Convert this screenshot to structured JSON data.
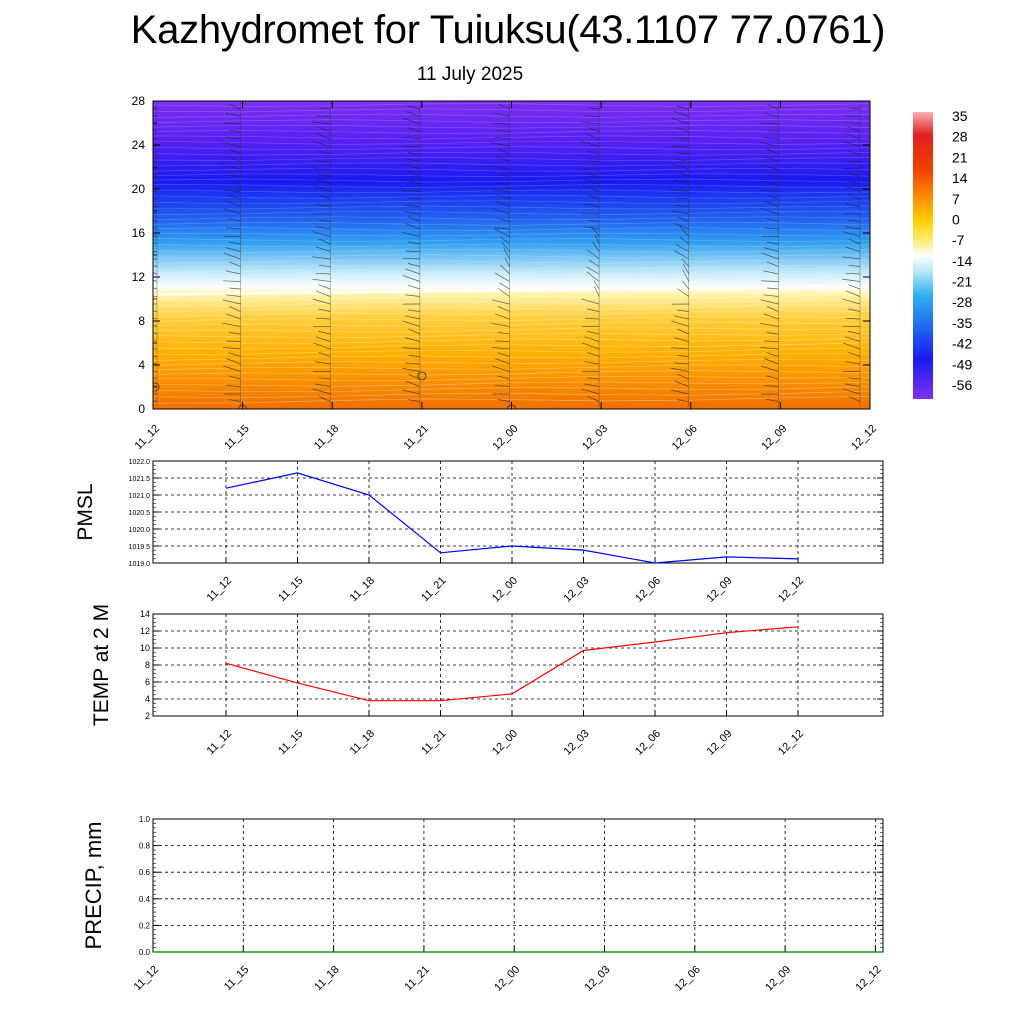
{
  "title": "Kazhydromet for Tuiuksu(43.1107 77.0761)",
  "subtitle": "11 July 2025",
  "time_labels": [
    "11_12",
    "11_15",
    "11_18",
    "11_21",
    "12_00",
    "12_03",
    "12_06",
    "12_09",
    "12_12"
  ],
  "precip_time_labels": [
    "11_12",
    "11_15",
    "11_18",
    "11_21",
    "12_00",
    "12_03",
    "12_06",
    "12_09",
    "12_12"
  ],
  "chart_data": [
    {
      "type": "heatmap",
      "title": "Kazhydromet for Tuiuksu(43.1107 77.0761)",
      "subtitle": "11 July 2025",
      "x_categories": [
        "11_12",
        "11_15",
        "11_18",
        "11_21",
        "12_00",
        "12_03",
        "12_06",
        "12_09",
        "12_12"
      ],
      "ylim": [
        0,
        28
      ],
      "yticks": [
        0,
        4,
        8,
        12,
        16,
        20,
        24,
        28
      ],
      "colorbar_labels": [
        "35",
        "28",
        "21",
        "14",
        "7",
        "0",
        "-7",
        "-14",
        "-21",
        "-28",
        "-35",
        "-42",
        "-49",
        "-56"
      ],
      "freezing_level_at_x": [
        10.4,
        10.5,
        10.6,
        10.7,
        10.8,
        10.9,
        11.0,
        11.1,
        11.2
      ],
      "colors": {
        "warm_low": "#f07800",
        "warm_mid": "#ffc000",
        "freezing": "#fff8d0",
        "cold_mid": "#3caeef",
        "cold_high": "#1e1ef0",
        "top": "#7a2ef0"
      }
    },
    {
      "type": "line",
      "ylabel": "PMSL",
      "ylim": [
        1019.0,
        1022.0
      ],
      "yticks": [
        "1019.0",
        "1019.5",
        "1020.0",
        "1020.5",
        "1021.0",
        "1021.5",
        "1022.0"
      ],
      "categories": [
        "11_12",
        "11_15",
        "11_18",
        "11_21",
        "12_00",
        "12_03",
        "12_06",
        "12_09",
        "12_12"
      ],
      "values": [
        1021.2,
        1021.65,
        1021.0,
        1019.3,
        1019.5,
        1019.38,
        1019.0,
        1019.18,
        1019.12
      ],
      "color": "#0000ff",
      "grid": true
    },
    {
      "type": "line",
      "ylabel": "TEMP at 2 M",
      "ylim": [
        2,
        14
      ],
      "yticks": [
        "2",
        "4",
        "6",
        "8",
        "10",
        "12",
        "14"
      ],
      "categories": [
        "11_12",
        "11_15",
        "11_18",
        "11_21",
        "12_00",
        "12_03",
        "12_06",
        "12_09",
        "12_12"
      ],
      "values": [
        8.2,
        5.9,
        3.8,
        3.8,
        4.6,
        9.7,
        10.7,
        11.8,
        12.5
      ],
      "color": "#ff0000",
      "grid": true
    },
    {
      "type": "line",
      "ylabel": "PRECIP, mm",
      "ylim": [
        0.0,
        1.0
      ],
      "yticks": [
        "0.0",
        "0.2",
        "0.4",
        "0.6",
        "0.8",
        "1.0"
      ],
      "categories": [
        "11_12",
        "11_15",
        "11_18",
        "11_21",
        "12_00",
        "12_03",
        "12_06",
        "12_09",
        "12_12"
      ],
      "values": [
        0,
        0,
        0,
        0,
        0,
        0,
        0,
        0,
        0
      ],
      "color": "#008000",
      "grid": true
    }
  ]
}
